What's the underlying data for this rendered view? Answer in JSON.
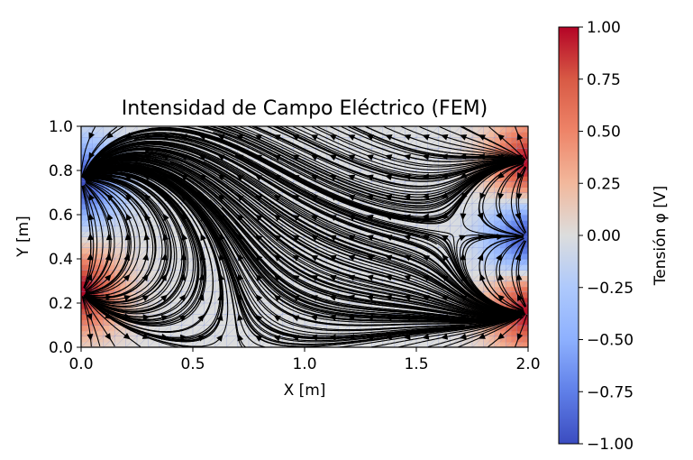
{
  "chart_data": {
    "type": "heatmap",
    "title": "Intensidad de Campo Eléctrico (FEM)",
    "xlabel": "X [m]",
    "ylabel": "Y [m]",
    "xlim": [
      0.0,
      2.0
    ],
    "ylim": [
      0.0,
      1.0
    ],
    "xticks": [
      "0.0",
      "0.5",
      "1.0",
      "1.5",
      "2.0"
    ],
    "yticks": [
      "0.0",
      "0.2",
      "0.4",
      "0.6",
      "0.8",
      "1.0"
    ],
    "grid": true,
    "colormap": "coolwarm",
    "colorbar": {
      "label": "Tensión φ [V]",
      "range": [
        -1.0,
        1.0
      ],
      "ticks": [
        "1.00",
        "0.75",
        "0.50",
        "0.25",
        "0.00",
        "−0.25",
        "−0.50",
        "−0.75",
        "−1.00"
      ]
    },
    "sources": [
      {
        "x": 0.0,
        "y": 0.75,
        "potential": -1.0
      },
      {
        "x": 0.0,
        "y": 0.25,
        "potential": 1.0
      },
      {
        "x": 2.0,
        "y": 0.833,
        "potential": 1.0
      },
      {
        "x": 2.0,
        "y": 0.5,
        "potential": -1.0
      },
      {
        "x": 2.0,
        "y": 0.167,
        "potential": 1.0
      }
    ],
    "overlay": "streamlines",
    "colors": {
      "low": "#3b4cc0",
      "mid": "#dddddd",
      "high": "#b40426",
      "streamline": "#000000"
    }
  }
}
